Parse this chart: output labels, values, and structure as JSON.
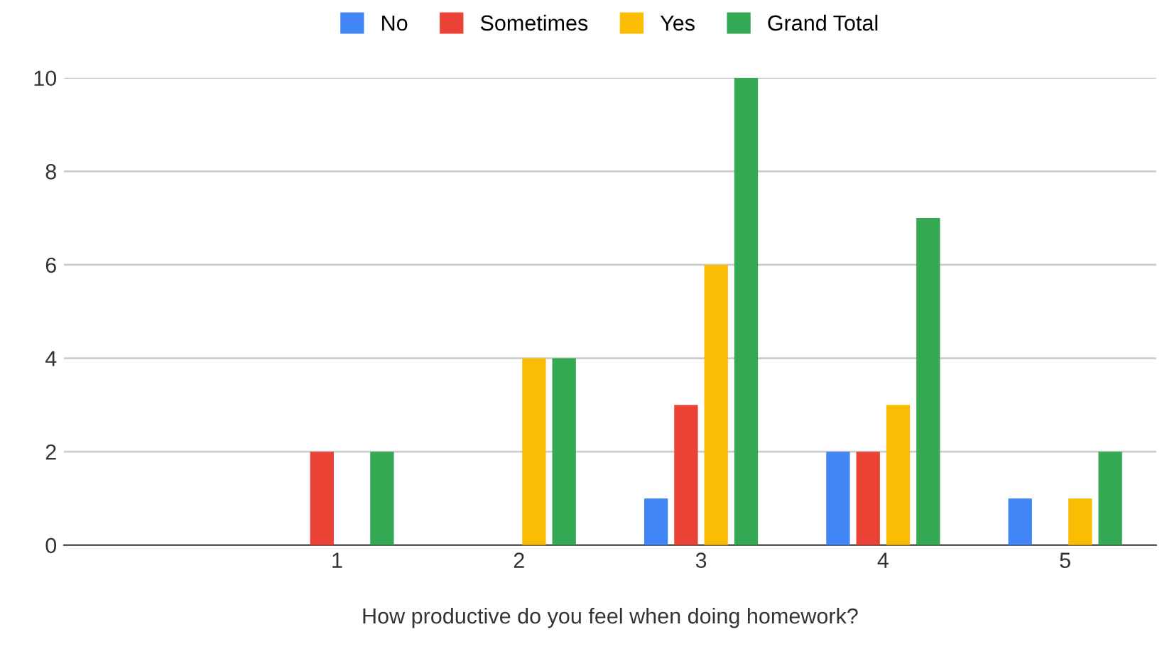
{
  "chart_data": {
    "type": "bar",
    "xlabel": "How productive do you feel when doing homework?",
    "categories": [
      null,
      "1",
      "2",
      "3",
      "4",
      "5"
    ],
    "series": [
      {
        "name": "No",
        "color": "#4285f4",
        "values": [
          null,
          null,
          null,
          1,
          2,
          1
        ]
      },
      {
        "name": "Sometimes",
        "color": "#ea4335",
        "values": [
          null,
          2,
          null,
          3,
          2,
          null
        ]
      },
      {
        "name": "Yes",
        "color": "#fbbc04",
        "values": [
          null,
          null,
          4,
          6,
          3,
          1
        ]
      },
      {
        "name": "Grand Total",
        "color": "#34a853",
        "values": [
          null,
          2,
          4,
          10,
          7,
          2
        ]
      }
    ],
    "ylim": [
      0,
      10
    ],
    "yticks": [
      0,
      2,
      4,
      6,
      8,
      10
    ],
    "grid": "y",
    "legend": "top"
  }
}
